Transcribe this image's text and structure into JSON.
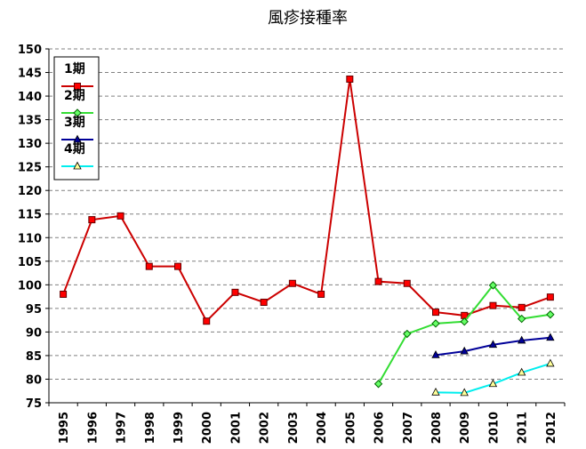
{
  "chart_data": {
    "type": "line",
    "title": "風疹接種率",
    "xlabel": "",
    "ylabel": "",
    "categories": [
      "1995",
      "1996",
      "1997",
      "1998",
      "1999",
      "2000",
      "2001",
      "2002",
      "2003",
      "2004",
      "2005",
      "2006",
      "2007",
      "2008",
      "2009",
      "2010",
      "2011",
      "2012"
    ],
    "ylim": [
      75,
      150
    ],
    "yticks": [
      "75",
      "80",
      "85",
      "90",
      "95",
      "100",
      "105",
      "110",
      "115",
      "120",
      "125",
      "130",
      "135",
      "140",
      "145",
      "150"
    ],
    "grid": true,
    "legend_position": "top-left",
    "series": [
      {
        "name": "1期",
        "color": "#cc0000",
        "marker": "square",
        "marker_fill": "#ff0000",
        "values": [
          98.0,
          113.8,
          114.6,
          103.9,
          103.9,
          92.3,
          98.4,
          96.3,
          100.3,
          98.0,
          143.6,
          100.7,
          100.3,
          94.2,
          93.5,
          95.6,
          95.2,
          97.4
        ]
      },
      {
        "name": "2期",
        "color": "#33dd33",
        "marker": "diamond",
        "marker_fill": "#66ff66",
        "values": [
          null,
          null,
          null,
          null,
          null,
          null,
          null,
          null,
          null,
          null,
          null,
          79.0,
          89.6,
          91.8,
          92.2,
          99.9,
          92.8,
          93.7
        ]
      },
      {
        "name": "3期",
        "color": "#000099",
        "marker": "triangle",
        "marker_fill": "#000099",
        "values": [
          null,
          null,
          null,
          null,
          null,
          null,
          null,
          null,
          null,
          null,
          null,
          null,
          null,
          85.1,
          85.9,
          87.3,
          88.2,
          88.8
        ]
      },
      {
        "name": "4期",
        "color": "#00eeee",
        "marker": "triangle",
        "marker_fill": "#ffff99",
        "values": [
          null,
          null,
          null,
          null,
          null,
          null,
          null,
          null,
          null,
          null,
          null,
          null,
          null,
          77.2,
          77.1,
          79.0,
          81.4,
          83.3
        ]
      }
    ]
  }
}
